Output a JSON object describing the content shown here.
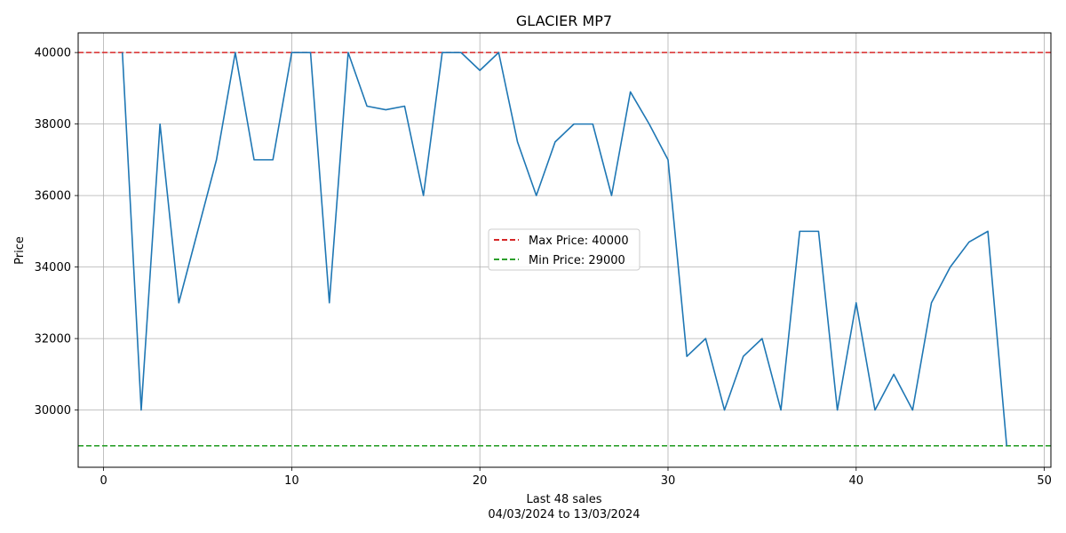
{
  "chart_data": {
    "type": "line",
    "title": "GLACIER MP7",
    "xlabel": "Last 48 sales",
    "xlabel_sub": "04/03/2024 to 13/03/2024",
    "ylabel": "Price",
    "xlim": [
      -1.35,
      50.35
    ],
    "ylim": [
      28400,
      40550
    ],
    "xticks": [
      0,
      10,
      20,
      30,
      40,
      50
    ],
    "yticks": [
      30000,
      32000,
      34000,
      36000,
      38000,
      40000
    ],
    "grid": true,
    "legend_position": "center",
    "series": [
      {
        "color": "#1f77b4",
        "x": [
          1,
          2,
          3,
          4,
          5,
          6,
          7,
          8,
          9,
          10,
          11,
          12,
          13,
          14,
          15,
          16,
          17,
          18,
          19,
          20,
          21,
          22,
          23,
          24,
          25,
          26,
          27,
          28,
          29,
          30,
          31,
          32,
          33,
          34,
          35,
          36,
          37,
          38,
          39,
          40,
          41,
          42,
          43,
          44,
          45,
          46,
          47,
          48
        ],
        "y": [
          40000,
          30000,
          38000,
          33000,
          35000,
          37000,
          40000,
          37000,
          37000,
          40000,
          40000,
          33000,
          40000,
          38500,
          38400,
          38500,
          36000,
          40000,
          40000,
          39500,
          40000,
          37500,
          36000,
          37500,
          38000,
          38000,
          36000,
          38900,
          38000,
          37000,
          31500,
          32000,
          30000,
          31500,
          32000,
          30000,
          35000,
          35000,
          30000,
          33000,
          30000,
          31000,
          30000,
          33000,
          34000,
          34700,
          35000,
          29000
        ]
      }
    ],
    "reference_lines": [
      {
        "label": "Max Price: 40000",
        "value": 40000,
        "color": "#d62728"
      },
      {
        "label": "Min Price: 29000",
        "value": 29000,
        "color": "#2ca02c"
      }
    ]
  }
}
